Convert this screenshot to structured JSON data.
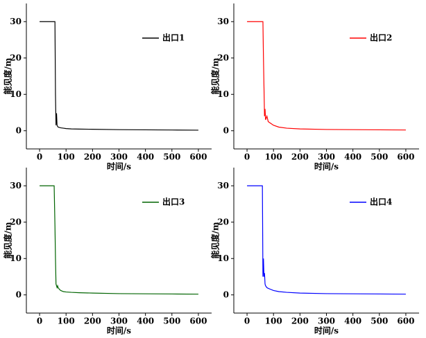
{
  "chart_data": [
    {
      "type": "line",
      "xlabel": "时间/s",
      "ylabel": "能见度/m",
      "xlim": [
        -50,
        650
      ],
      "ylim": [
        -5,
        35
      ],
      "xticks": [
        0,
        100,
        200,
        300,
        400,
        500,
        600
      ],
      "yticks": [
        0,
        10,
        20,
        30
      ],
      "legend": "upper right",
      "x": [
        0,
        55,
        58,
        60,
        62,
        64,
        66,
        68,
        70,
        75,
        80,
        90,
        100,
        120,
        150,
        200,
        300,
        400,
        500,
        600
      ],
      "series": [
        {
          "name": "出口1",
          "color": "#000000",
          "values": [
            30,
            30,
            30,
            10,
            1.5,
            4.8,
            1.5,
            1.2,
            1,
            0.9,
            0.8,
            0.7,
            0.6,
            0.5,
            0.45,
            0.4,
            0.3,
            0.25,
            0.2,
            0.15
          ]
        }
      ]
    },
    {
      "type": "line",
      "xlabel": "时间/s",
      "ylabel": "能见度/m",
      "xlim": [
        -50,
        650
      ],
      "ylim": [
        -5,
        35
      ],
      "xticks": [
        0,
        100,
        200,
        300,
        400,
        500,
        600
      ],
      "yticks": [
        0,
        10,
        20,
        30
      ],
      "legend": "upper right",
      "x": [
        0,
        55,
        58,
        60,
        62,
        64,
        66,
        68,
        70,
        75,
        80,
        90,
        100,
        120,
        150,
        200,
        300,
        400,
        500,
        600
      ],
      "series": [
        {
          "name": "出口2",
          "color": "#ff0000",
          "values": [
            30,
            30,
            30,
            30,
            20,
            12,
            4,
            6,
            3,
            4,
            2.5,
            2,
            1.5,
            1,
            0.7,
            0.5,
            0.35,
            0.3,
            0.25,
            0.2
          ]
        }
      ]
    },
    {
      "type": "line",
      "xlabel": "时间/s",
      "ylabel": "能见度/m",
      "xlim": [
        -50,
        650
      ],
      "ylim": [
        -5,
        35
      ],
      "xticks": [
        0,
        100,
        200,
        300,
        400,
        500,
        600
      ],
      "yticks": [
        0,
        10,
        20,
        30
      ],
      "legend": "upper right",
      "x": [
        0,
        55,
        58,
        60,
        62,
        64,
        66,
        68,
        70,
        75,
        80,
        90,
        100,
        120,
        150,
        200,
        300,
        400,
        500,
        600
      ],
      "series": [
        {
          "name": "出口3",
          "color": "#006400",
          "values": [
            30,
            30,
            19,
            10,
            3,
            2.5,
            2,
            2.5,
            2,
            1.5,
            1.2,
            0.9,
            0.8,
            0.7,
            0.6,
            0.5,
            0.35,
            0.3,
            0.25,
            0.2
          ]
        }
      ]
    },
    {
      "type": "line",
      "xlabel": "时间/s",
      "ylabel": "能见度/m",
      "xlim": [
        -50,
        650
      ],
      "ylim": [
        -5,
        35
      ],
      "xticks": [
        0,
        100,
        200,
        300,
        400,
        500,
        600
      ],
      "yticks": [
        0,
        10,
        20,
        30
      ],
      "legend": "upper right",
      "x": [
        0,
        55,
        58,
        60,
        62,
        64,
        66,
        68,
        70,
        75,
        80,
        90,
        100,
        120,
        150,
        200,
        300,
        400,
        500,
        600
      ],
      "series": [
        {
          "name": "出口4",
          "color": "#0000ff",
          "values": [
            30,
            30,
            30,
            5,
            10,
            5,
            6,
            3,
            2.5,
            2,
            1.8,
            1.5,
            1.2,
            0.9,
            0.7,
            0.5,
            0.35,
            0.3,
            0.25,
            0.2
          ]
        }
      ]
    }
  ]
}
